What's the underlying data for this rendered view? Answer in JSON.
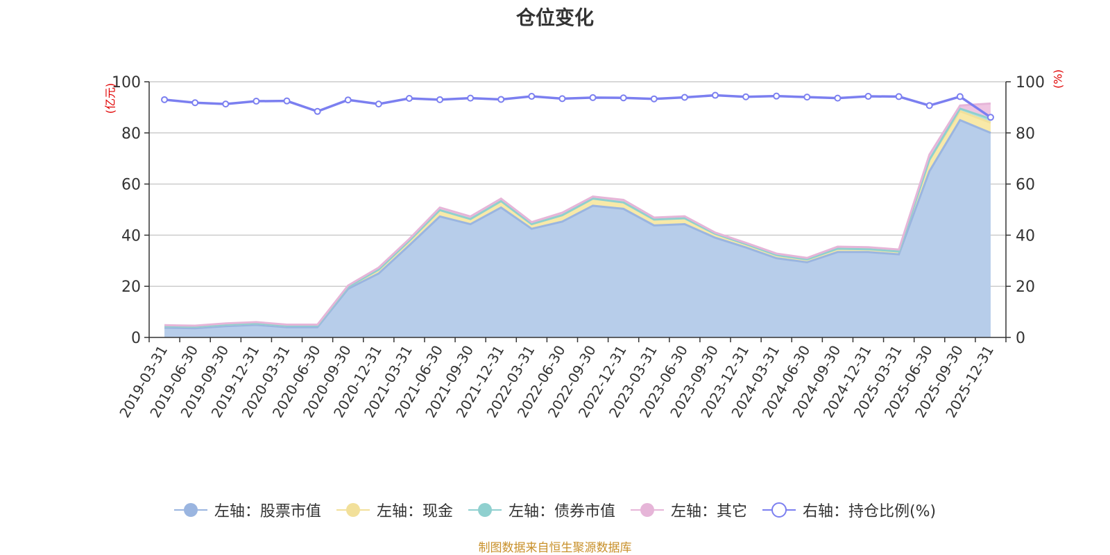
{
  "chart_data": {
    "type": "area",
    "title": "仓位变化",
    "y_left_unit": "(亿元)",
    "y_right_unit": "(%)",
    "ylim_left": [
      0,
      100
    ],
    "ylim_right": [
      0,
      100
    ],
    "y_ticks": [
      0,
      20,
      40,
      60,
      80,
      100
    ],
    "grid": true,
    "legend_position": "bottom",
    "stacked": true,
    "x": [
      "2019-03-31",
      "2019-06-30",
      "2019-09-30",
      "2019-12-31",
      "2020-03-31",
      "2020-06-30",
      "2020-09-30",
      "2020-12-31",
      "2021-03-31",
      "2021-06-30",
      "2021-09-30",
      "2021-12-31",
      "2022-03-31",
      "2022-06-30",
      "2022-09-30",
      "2022-12-31",
      "2023-03-31",
      "2023-06-30",
      "2023-09-30",
      "2023-12-31",
      "2024-03-31",
      "2024-06-30",
      "2024-09-30",
      "2024-12-31",
      "2025-03-31",
      "2025-06-30",
      "2025-09-30",
      "2025-12-31"
    ],
    "series": [
      {
        "name": "左轴：股票市值",
        "axis": "left",
        "kind": "area",
        "color": "#9ab5e0",
        "fill": "#b7cdea",
        "values": [
          3.8,
          3.6,
          4.4,
          4.9,
          4.0,
          4.0,
          19.0,
          25.0,
          36.0,
          47.3,
          44.3,
          50.8,
          42.5,
          45.3,
          51.5,
          50.3,
          43.8,
          44.3,
          39.0,
          35.2,
          31.0,
          29.4,
          33.4,
          33.4,
          32.5,
          65.0,
          85.0,
          80.0
        ]
      },
      {
        "name": "左轴：现金",
        "axis": "left",
        "kind": "area",
        "color": "#f2e09a",
        "fill": "#f8e9a8",
        "values": [
          0.6,
          0.6,
          0.6,
          0.6,
          0.6,
          0.6,
          0.8,
          1.5,
          1.8,
          2.5,
          2.0,
          2.5,
          1.8,
          2.5,
          2.8,
          2.5,
          2.3,
          2.3,
          1.5,
          1.3,
          1.2,
          1.1,
          1.3,
          1.1,
          1.1,
          4.5,
          3.5,
          4.0
        ]
      },
      {
        "name": "左轴：债券市值",
        "axis": "left",
        "kind": "area",
        "color": "#8fd0cf",
        "fill": "#b6e0dd",
        "values": [
          0,
          0,
          0,
          0,
          0,
          0,
          0,
          0,
          0,
          0,
          0,
          0,
          0,
          0,
          0,
          0,
          0,
          0,
          0,
          0,
          0,
          0,
          0,
          0,
          0,
          0,
          1.0,
          1.5
        ]
      },
      {
        "name": "左轴：其它",
        "axis": "left",
        "kind": "area",
        "color": "#e6b5d8",
        "fill": "#efc5e2",
        "values": [
          0.4,
          0.4,
          0.5,
          0.5,
          0.4,
          0.4,
          0.5,
          0.8,
          0.7,
          1.0,
          1.0,
          1.0,
          0.8,
          1.0,
          0.8,
          1.0,
          0.8,
          0.8,
          0.5,
          0.5,
          0.6,
          0.6,
          0.8,
          0.8,
          0.8,
          2.0,
          1.2,
          6.0
        ]
      },
      {
        "name": "右轴：持仓比例(%)",
        "axis": "right",
        "kind": "line",
        "color": "#7b7ff0",
        "values": [
          93.0,
          91.8,
          91.3,
          92.4,
          92.5,
          88.4,
          92.9,
          91.3,
          93.5,
          93.0,
          93.6,
          93.1,
          94.3,
          93.4,
          93.8,
          93.7,
          93.3,
          93.9,
          94.7,
          94.1,
          94.4,
          94.0,
          93.6,
          94.3,
          94.2,
          90.7,
          94.2,
          86.1
        ]
      }
    ]
  },
  "footer": "制图数据来自恒生聚源数据库"
}
